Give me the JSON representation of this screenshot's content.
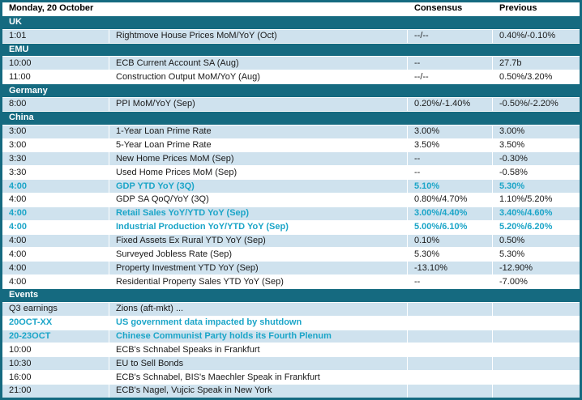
{
  "header": {
    "title": "Monday, 20 October",
    "consensus_label": "Consensus",
    "previous_label": "Previous"
  },
  "colors": {
    "section_bg": "#156a80",
    "border": "#156a80",
    "shaded_row_bg": "#cfe2ee",
    "highlight_text": "#1ba5c8",
    "body_text": "#1a1a1a"
  },
  "rows": [
    {
      "type": "section",
      "label": "UK"
    },
    {
      "type": "data",
      "time": "1:01",
      "event": "Rightmove House Prices MoM/YoY (Oct)",
      "consensus": "--/--",
      "previous": "0.40%/-0.10%",
      "shaded": true,
      "highlight": false
    },
    {
      "type": "section",
      "label": "EMU"
    },
    {
      "type": "data",
      "time": "10:00",
      "event": "ECB Current Account SA (Aug)",
      "consensus": "--",
      "previous": "27.7b",
      "shaded": true,
      "highlight": false
    },
    {
      "type": "data",
      "time": "11:00",
      "event": "Construction Output MoM/YoY (Aug)",
      "consensus": "--/--",
      "previous": "0.50%/3.20%",
      "shaded": false,
      "highlight": false
    },
    {
      "type": "section",
      "label": "Germany"
    },
    {
      "type": "data",
      "time": "8:00",
      "event": "PPI MoM/YoY (Sep)",
      "consensus": "0.20%/-1.40%",
      "previous": "-0.50%/-2.20%",
      "shaded": true,
      "highlight": false
    },
    {
      "type": "section",
      "label": "China"
    },
    {
      "type": "data",
      "time": "3:00",
      "event": "1-Year Loan Prime Rate",
      "consensus": "3.00%",
      "previous": "3.00%",
      "shaded": true,
      "highlight": false
    },
    {
      "type": "data",
      "time": "3:00",
      "event": "5-Year Loan Prime Rate",
      "consensus": "3.50%",
      "previous": "3.50%",
      "shaded": false,
      "highlight": false
    },
    {
      "type": "data",
      "time": "3:30",
      "event": "New Home Prices MoM (Sep)",
      "consensus": "--",
      "previous": "-0.30%",
      "shaded": true,
      "highlight": false
    },
    {
      "type": "data",
      "time": "3:30",
      "event": "Used Home Prices MoM (Sep)",
      "consensus": "--",
      "previous": "-0.58%",
      "shaded": false,
      "highlight": false
    },
    {
      "type": "data",
      "time": "4:00",
      "event": "GDP YTD YoY (3Q)",
      "consensus": "5.10%",
      "previous": "5.30%",
      "shaded": true,
      "highlight": true
    },
    {
      "type": "data",
      "time": "4:00",
      "event": "GDP SA QoQ/YoY (3Q)",
      "consensus": "0.80%/4.70%",
      "previous": "1.10%/5.20%",
      "shaded": false,
      "highlight": false
    },
    {
      "type": "data",
      "time": "4:00",
      "event": "Retail Sales YoY/YTD YoY (Sep)",
      "consensus": "3.00%/4.40%",
      "previous": "3.40%/4.60%",
      "shaded": true,
      "highlight": true
    },
    {
      "type": "data",
      "time": "4:00",
      "event": "Industrial Production YoY/YTD YoY (Sep)",
      "consensus": "5.00%/6.10%",
      "previous": "5.20%/6.20%",
      "shaded": false,
      "highlight": true
    },
    {
      "type": "data",
      "time": "4:00",
      "event": "Fixed Assets Ex Rural YTD YoY (Sep)",
      "consensus": "0.10%",
      "previous": "0.50%",
      "shaded": true,
      "highlight": false
    },
    {
      "type": "data",
      "time": "4:00",
      "event": "Surveyed Jobless Rate (Sep)",
      "consensus": "5.30%",
      "previous": "5.30%",
      "shaded": false,
      "highlight": false
    },
    {
      "type": "data",
      "time": "4:00",
      "event": "Property Investment YTD YoY (Sep)",
      "consensus": "-13.10%",
      "previous": "-12.90%",
      "shaded": true,
      "highlight": false
    },
    {
      "type": "data",
      "time": "4:00",
      "event": "Residential Property Sales YTD YoY (Sep)",
      "consensus": "--",
      "previous": "-7.00%",
      "shaded": false,
      "highlight": false
    },
    {
      "type": "section",
      "label": "Events"
    },
    {
      "type": "data",
      "time": "Q3 earnings",
      "event": "Zions (aft-mkt) ...",
      "consensus": "",
      "previous": "",
      "shaded": true,
      "highlight": false
    },
    {
      "type": "data",
      "time": "20OCT-XX",
      "event": "US government  data impacted by shutdown",
      "consensus": "",
      "previous": "",
      "shaded": false,
      "highlight": true
    },
    {
      "type": "data",
      "time": "20-23OCT",
      "event": "Chinese Communist Party holds its Fourth Plenum",
      "consensus": "",
      "previous": "",
      "shaded": true,
      "highlight": true
    },
    {
      "type": "data",
      "time": "10:00",
      "event": "ECB's Schnabel Speaks in Frankfurt",
      "consensus": "",
      "previous": "",
      "shaded": false,
      "highlight": false
    },
    {
      "type": "data",
      "time": "10:30",
      "event": "EU to Sell Bonds",
      "consensus": "",
      "previous": "",
      "shaded": true,
      "highlight": false
    },
    {
      "type": "data",
      "time": "16:00",
      "event": "ECB's Schnabel, BIS's Maechler Speak in Frankfurt",
      "consensus": "",
      "previous": "",
      "shaded": false,
      "highlight": false
    },
    {
      "type": "data",
      "time": "21:00",
      "event": "ECB's Nagel, Vujcic Speak in New York",
      "consensus": "",
      "previous": "",
      "shaded": true,
      "highlight": false
    }
  ]
}
